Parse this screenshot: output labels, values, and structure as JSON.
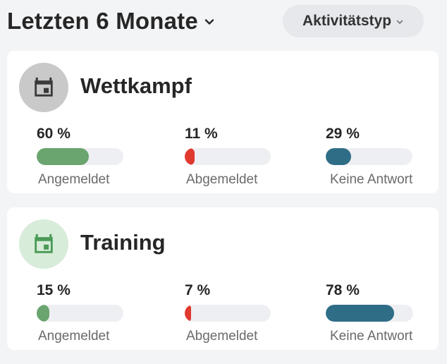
{
  "header": {
    "period_label": "Letzten 6 Monate",
    "filter_label": "Aktivitätstyp"
  },
  "colors": {
    "registered": "#6aa46e",
    "deregistered": "#e03a2f",
    "no_answer": "#2f6d87",
    "track": "#eeeff2",
    "wettkampf_avatar_bg": "#c9c9c9",
    "wettkampf_icon": "#3a3a3a",
    "training_avatar_bg": "#d7ecd9",
    "training_icon": "#4a9a57"
  },
  "cards": [
    {
      "title": "Wettkampf",
      "icon": "calendar-event-icon",
      "stats": [
        {
          "percent_label": "60 %",
          "value": 60,
          "caption": "Angemeldet"
        },
        {
          "percent_label": "11 %",
          "value": 11,
          "caption": "Abgemeldet"
        },
        {
          "percent_label": "29 %",
          "value": 29,
          "caption": "Keine Antwort"
        }
      ]
    },
    {
      "title": "Training",
      "icon": "calendar-event-icon",
      "stats": [
        {
          "percent_label": "15 %",
          "value": 15,
          "caption": "Angemeldet"
        },
        {
          "percent_label": "7 %",
          "value": 7,
          "caption": "Abgemeldet"
        },
        {
          "percent_label": "78 %",
          "value": 78,
          "caption": "Keine Antwort"
        }
      ]
    }
  ]
}
